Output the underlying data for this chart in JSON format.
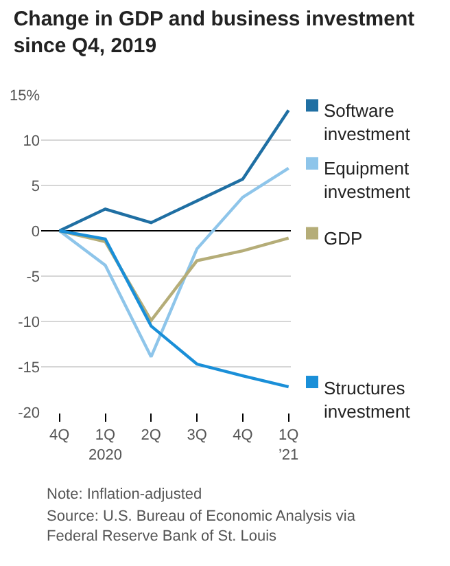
{
  "chart_data": {
    "type": "line",
    "title": "Change in GDP and business investment since Q4, 2019",
    "categories": [
      "4Q",
      "1Q 2020",
      "2Q",
      "3Q",
      "4Q",
      "1Q ’21"
    ],
    "series": [
      {
        "name": "Software investment",
        "color": "#1f6fa3",
        "values": [
          0,
          2.4,
          0.9,
          3.3,
          5.7,
          13.3
        ]
      },
      {
        "name": "Equipment investment",
        "color": "#8ec5ea",
        "values": [
          0,
          -3.8,
          -13.9,
          -2.0,
          3.7,
          6.9
        ]
      },
      {
        "name": "GDP",
        "color": "#b5ad78",
        "values": [
          0,
          -1.2,
          -9.9,
          -3.3,
          -2.2,
          -0.8
        ]
      },
      {
        "name": "Structures investment",
        "color": "#1a8fd8",
        "values": [
          0,
          -0.9,
          -10.5,
          -14.7,
          -16.0,
          -17.2
        ]
      }
    ],
    "ylim": [
      -20,
      15
    ],
    "yticks": [
      {
        "value": 15,
        "label": "15%"
      },
      10,
      5,
      0,
      -5,
      -10,
      -15,
      -20
    ],
    "grid": "y",
    "legend": "right",
    "annotations": [
      "Note: Inflation-adjusted",
      "Source: U.S. Bureau of Economic Analysis via Federal Reserve Bank of St. Louis"
    ]
  }
}
